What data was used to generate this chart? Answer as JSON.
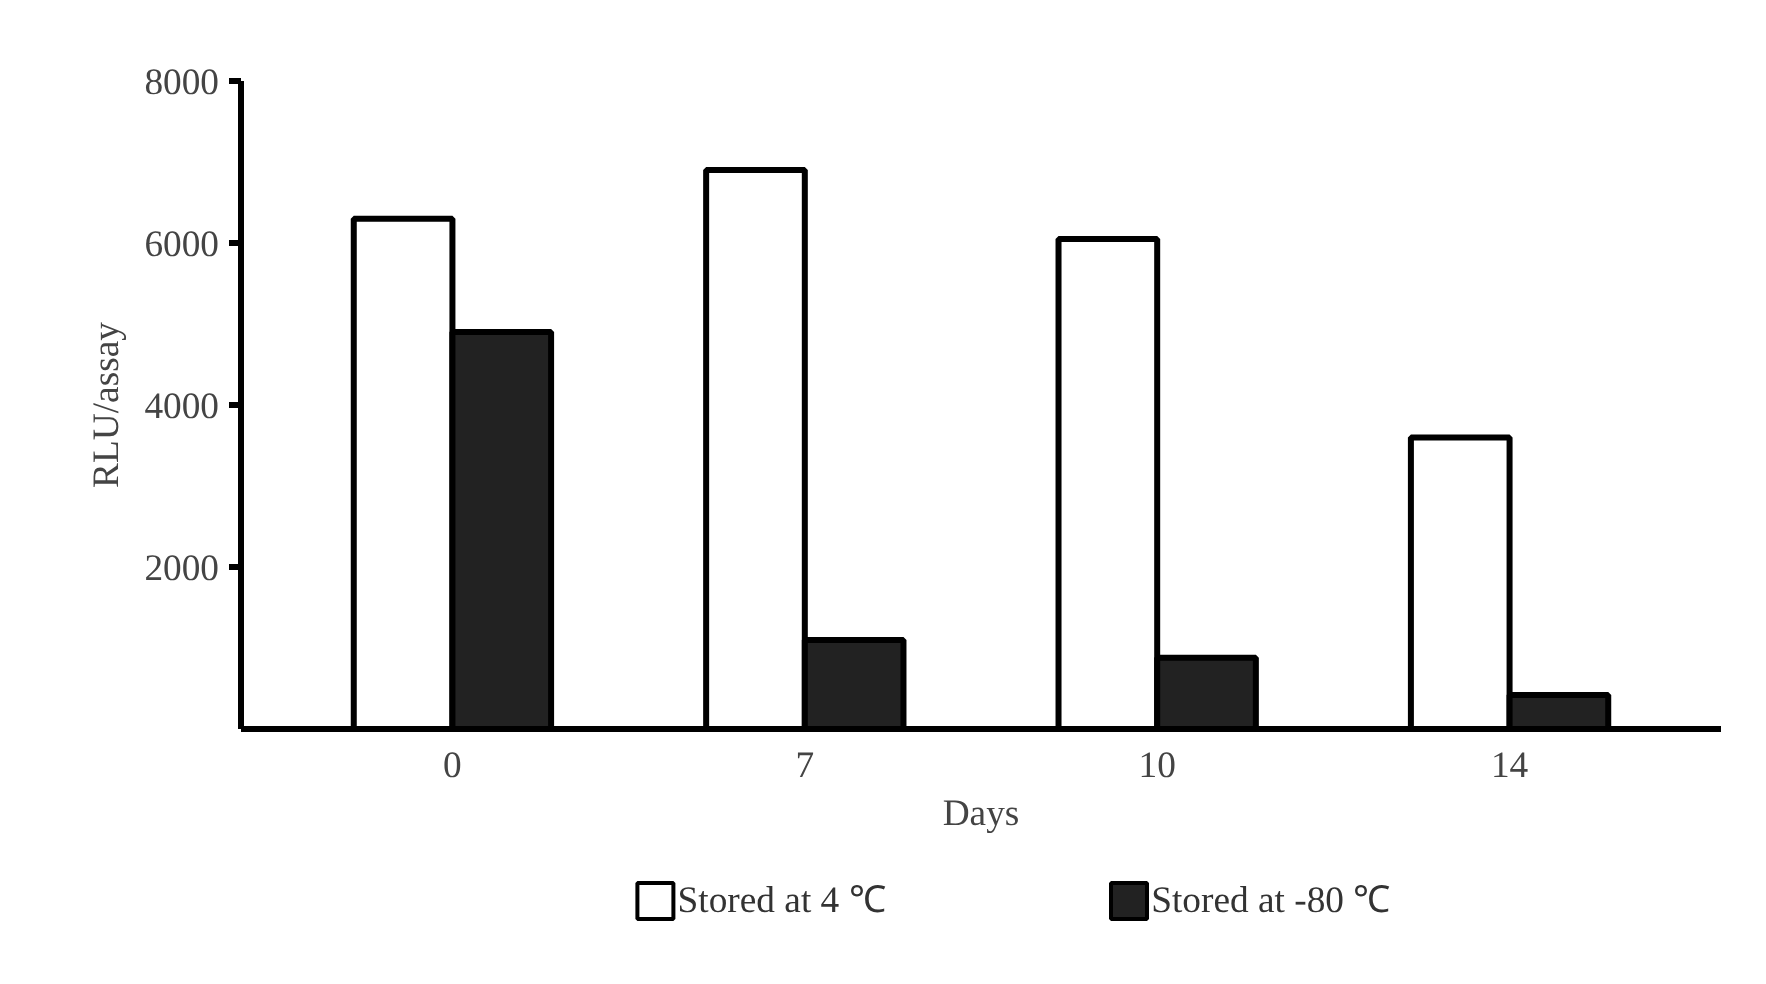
{
  "chart_data": {
    "type": "bar",
    "xlabel": "Days",
    "ylabel": "RLU/assay",
    "categories": [
      "0",
      "7",
      "10",
      "14"
    ],
    "series": [
      {
        "name": "Stored at 4 ℃",
        "color": "#ffffff",
        "values": [
          6300,
          6900,
          6050,
          3600
        ]
      },
      {
        "name": "Stored at -80 ℃",
        "color": "#222222",
        "values": [
          4900,
          1100,
          880,
          420
        ]
      }
    ],
    "ylim": [
      0,
      8000
    ],
    "yticks": [
      2000,
      4000,
      6000,
      8000
    ],
    "grid": false,
    "legend": "bottom"
  }
}
